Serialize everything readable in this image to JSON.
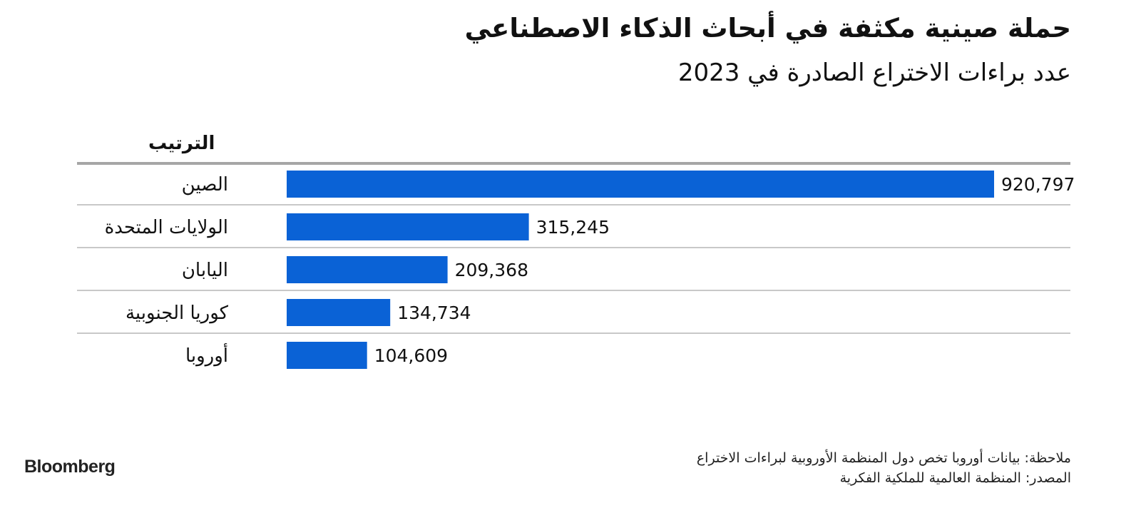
{
  "header": {
    "title": "حملة صينية مكثفة في أبحاث الذكاء الاصطناعي",
    "subtitle": "عدد براءات الاختراع الصادرة في 2023"
  },
  "chart_data": {
    "type": "bar",
    "orientation": "horizontal",
    "column_header": "الترتيب",
    "categories": [
      "الصين",
      "الولايات المتحدة",
      "اليابان",
      "كوريا الجنوبية",
      "أوروبا"
    ],
    "values": [
      920797,
      315245,
      209368,
      134734,
      104609
    ],
    "value_labels": [
      "920,797",
      "315,245",
      "209,368",
      "134,734",
      "104,609"
    ],
    "bar_color": "#0a62d6",
    "xlim": [
      0,
      920797
    ],
    "grid": true
  },
  "footer": {
    "note": "ملاحظة: بيانات أوروبا تخص دول المنظمة الأوروبية لبراءات الاختراع",
    "source": "المصدر: المنظمة العالمية للملكية الفكرية",
    "logo": "Bloomberg"
  }
}
